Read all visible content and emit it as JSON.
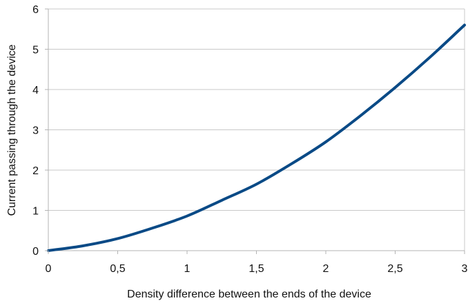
{
  "chart_data": {
    "type": "line",
    "title": "",
    "xlabel": "Density difference between the ends of the device",
    "ylabel": "Current passing through the device",
    "xlim": [
      0,
      3
    ],
    "ylim": [
      0,
      6
    ],
    "x_ticks": [
      "0",
      "0,5",
      "1",
      "1,5",
      "2",
      "2,5",
      "3"
    ],
    "y_ticks": [
      "0",
      "1",
      "2",
      "3",
      "4",
      "5",
      "6"
    ],
    "grid": "horizontal",
    "legend": "none",
    "series": [
      {
        "color": "#0a4a86",
        "x": [
          0,
          0.25,
          0.5,
          0.75,
          1.0,
          1.25,
          1.5,
          1.75,
          2.0,
          2.25,
          2.5,
          2.75,
          3.0
        ],
        "y": [
          0,
          0.12,
          0.3,
          0.56,
          0.86,
          1.25,
          1.65,
          2.15,
          2.7,
          3.35,
          4.05,
          4.8,
          5.6
        ]
      }
    ]
  }
}
